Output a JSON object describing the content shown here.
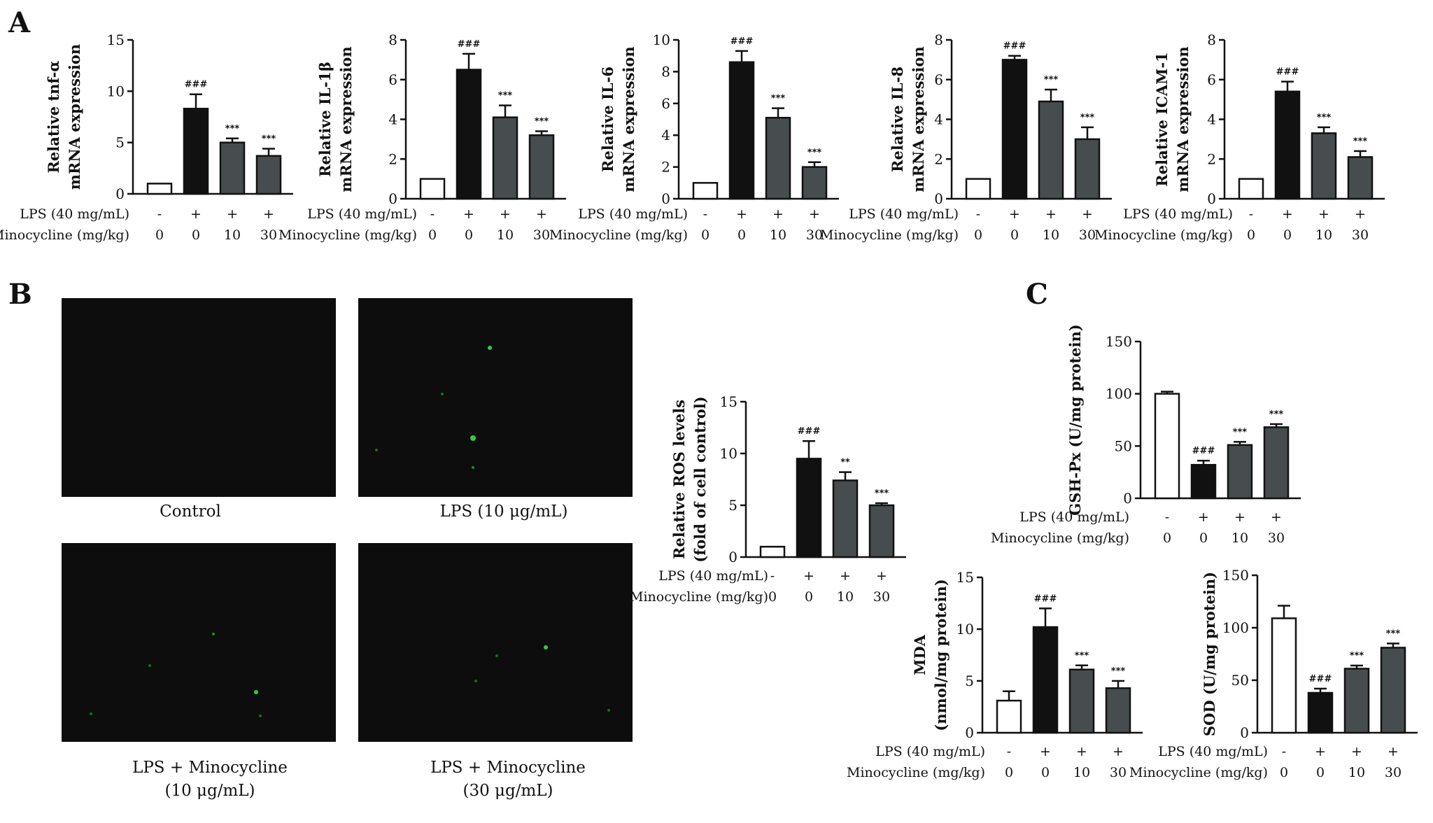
{
  "panel_labels": {
    "a": "A",
    "b": "B",
    "c": "C"
  },
  "colors": {
    "control": "#ffffff",
    "lps": "#111111",
    "treated": "#474d4f",
    "image_bg": "#0d0d0d",
    "fluorescence": "#2fcf3a"
  },
  "micrographs": {
    "captions": [
      {
        "line1": "Control",
        "line2": ""
      },
      {
        "line1": "LPS (10 μg/mL)",
        "line2": ""
      },
      {
        "line1": "LPS + Minocycline",
        "line2": "(10 μg/mL)"
      },
      {
        "line1": "LPS + Minocycline",
        "line2": "(30 μg/mL)"
      }
    ]
  },
  "chart_data": [
    {
      "id": "tnf",
      "panel": "A",
      "type": "bar",
      "ylabel_lines": [
        "Relative tnf-α",
        "mRNA expression"
      ],
      "ylim": [
        0,
        15
      ],
      "yticks": [
        "0",
        "5",
        "10",
        "15"
      ],
      "categories": [
        "-/0",
        "+/0",
        "+/10",
        "+/30"
      ],
      "values": [
        1.0,
        8.3,
        5.0,
        3.7
      ],
      "errors": [
        0,
        1.4,
        0.4,
        0.7
      ],
      "annotations": [
        "",
        "###",
        "***",
        "***"
      ],
      "row_labels": [
        "LPS (40 mg/mL)",
        "Minocycline (mg/kg)"
      ],
      "lps_row": [
        "-",
        "+",
        "+",
        "+"
      ],
      "minocycline_row": [
        "0",
        "0",
        "10",
        "30"
      ]
    },
    {
      "id": "il1b",
      "panel": "A",
      "type": "bar",
      "ylabel_lines": [
        "Relative IL-1β",
        "mRNA expression"
      ],
      "ylim": [
        0,
        8
      ],
      "yticks": [
        "0",
        "2",
        "4",
        "6",
        "8"
      ],
      "categories": [
        "-/0",
        "+/0",
        "+/10",
        "+/30"
      ],
      "values": [
        1.0,
        6.5,
        4.1,
        3.2
      ],
      "errors": [
        0,
        0.8,
        0.6,
        0.2
      ],
      "annotations": [
        "",
        "###",
        "***",
        "***"
      ],
      "row_labels": [
        "LPS (40 mg/mL)",
        "Minocycline (mg/kg)"
      ],
      "lps_row": [
        "-",
        "+",
        "+",
        "+"
      ],
      "minocycline_row": [
        "0",
        "0",
        "10",
        "30"
      ]
    },
    {
      "id": "il6",
      "panel": "A",
      "type": "bar",
      "ylabel_lines": [
        "Relative IL-6",
        "mRNA expression"
      ],
      "ylim": [
        0,
        10
      ],
      "yticks": [
        "0",
        "2",
        "4",
        "6",
        "8",
        "10"
      ],
      "categories": [
        "-/0",
        "+/0",
        "+/10",
        "+/30"
      ],
      "values": [
        1.0,
        8.6,
        5.1,
        2.0
      ],
      "errors": [
        0,
        0.7,
        0.6,
        0.3
      ],
      "annotations": [
        "",
        "###",
        "***",
        "***"
      ],
      "row_labels": [
        "LPS (40 mg/mL)",
        "Minocycline (mg/kg)"
      ],
      "lps_row": [
        "-",
        "+",
        "+",
        "+"
      ],
      "minocycline_row": [
        "0",
        "0",
        "10",
        "30"
      ]
    },
    {
      "id": "il8",
      "panel": "A",
      "type": "bar",
      "ylabel_lines": [
        "Relative IL-8",
        "mRNA expression"
      ],
      "ylim": [
        0,
        8
      ],
      "yticks": [
        "0",
        "2",
        "4",
        "6",
        "8"
      ],
      "categories": [
        "-/0",
        "+/0",
        "+/10",
        "+/30"
      ],
      "values": [
        1.0,
        7.0,
        4.9,
        3.0
      ],
      "errors": [
        0,
        0.2,
        0.6,
        0.6
      ],
      "annotations": [
        "",
        "###",
        "***",
        "***"
      ],
      "row_labels": [
        "LPS (40 mg/mL)",
        "Minocycline (mg/kg)"
      ],
      "lps_row": [
        "-",
        "+",
        "+",
        "+"
      ],
      "minocycline_row": [
        "0",
        "0",
        "10",
        "30"
      ]
    },
    {
      "id": "icam1",
      "panel": "A",
      "type": "bar",
      "ylabel_lines": [
        "Relative ICAM-1",
        "mRNA expression"
      ],
      "ylim": [
        0,
        8
      ],
      "yticks": [
        "0",
        "2",
        "4",
        "6",
        "8"
      ],
      "categories": [
        "-/0",
        "+/0",
        "+/10",
        "+/30"
      ],
      "values": [
        1.0,
        5.4,
        3.3,
        2.1
      ],
      "errors": [
        0,
        0.5,
        0.3,
        0.3
      ],
      "annotations": [
        "",
        "###",
        "***",
        "***"
      ],
      "row_labels": [
        "LPS (40 mg/mL)",
        "Minocycline (mg/kg)"
      ],
      "lps_row": [
        "-",
        "+",
        "+",
        "+"
      ],
      "minocycline_row": [
        "0",
        "0",
        "10",
        "30"
      ]
    },
    {
      "id": "ros",
      "panel": "B",
      "type": "bar",
      "ylabel_lines": [
        "Relative ROS levels",
        "(fold of cell control)"
      ],
      "ylim": [
        0,
        15
      ],
      "yticks": [
        "0",
        "5",
        "10",
        "15"
      ],
      "categories": [
        "-/0",
        "+/0",
        "+/10",
        "+/30"
      ],
      "values": [
        1.0,
        9.5,
        7.4,
        5.0
      ],
      "errors": [
        0,
        1.7,
        0.8,
        0.2
      ],
      "annotations": [
        "",
        "###",
        "**",
        "***"
      ],
      "row_labels": [
        "LPS (40 mg/mL)",
        "Minocycline (mg/kg)"
      ],
      "lps_row": [
        "-",
        "+",
        "+",
        "+"
      ],
      "minocycline_row": [
        "0",
        "0",
        "10",
        "30"
      ]
    },
    {
      "id": "gshpx",
      "panel": "C",
      "type": "bar",
      "ylabel_lines": [
        "GSH-Px (U/mg protein)"
      ],
      "ylim": [
        0,
        150
      ],
      "yticks": [
        "0",
        "50",
        "100",
        "150"
      ],
      "categories": [
        "-/0",
        "+/0",
        "+/10",
        "+/30"
      ],
      "values": [
        100,
        32,
        51,
        68
      ],
      "errors": [
        2,
        4,
        3,
        3
      ],
      "annotations": [
        "",
        "###",
        "***",
        "***"
      ],
      "row_labels": [
        "LPS (40 mg/mL)",
        "Minocycline (mg/kg)"
      ],
      "lps_row": [
        "-",
        "+",
        "+",
        "+"
      ],
      "minocycline_row": [
        "0",
        "0",
        "10",
        "30"
      ]
    },
    {
      "id": "mda",
      "panel": "C",
      "type": "bar",
      "ylabel_lines": [
        "MDA",
        "(nmol/mg protein)"
      ],
      "ylim": [
        0,
        15
      ],
      "yticks": [
        "0",
        "5",
        "10",
        "15"
      ],
      "categories": [
        "-/0",
        "+/0",
        "+/10",
        "+/30"
      ],
      "values": [
        3.1,
        10.2,
        6.1,
        4.3
      ],
      "errors": [
        0.9,
        1.8,
        0.4,
        0.7
      ],
      "annotations": [
        "",
        "###",
        "***",
        "***"
      ],
      "row_labels": [
        "LPS (40 mg/mL)",
        "Minocycline (mg/kg)"
      ],
      "lps_row": [
        "-",
        "+",
        "+",
        "+"
      ],
      "minocycline_row": [
        "0",
        "0",
        "10",
        "30"
      ]
    },
    {
      "id": "sod",
      "panel": "C",
      "type": "bar",
      "ylabel_lines": [
        "SOD (U/mg protein)"
      ],
      "ylim": [
        0,
        150
      ],
      "yticks": [
        "0",
        "50",
        "100",
        "150"
      ],
      "categories": [
        "-/0",
        "+/0",
        "+/10",
        "+/30"
      ],
      "values": [
        109,
        38,
        61,
        81
      ],
      "errors": [
        12,
        4,
        3,
        4
      ],
      "annotations": [
        "",
        "###",
        "***",
        "***"
      ],
      "row_labels": [
        "LPS (40 mg/mL)",
        "Minocycline (mg/kg)"
      ],
      "lps_row": [
        "-",
        "+",
        "+",
        "+"
      ],
      "minocycline_row": [
        "0",
        "0",
        "10",
        "30"
      ]
    }
  ]
}
